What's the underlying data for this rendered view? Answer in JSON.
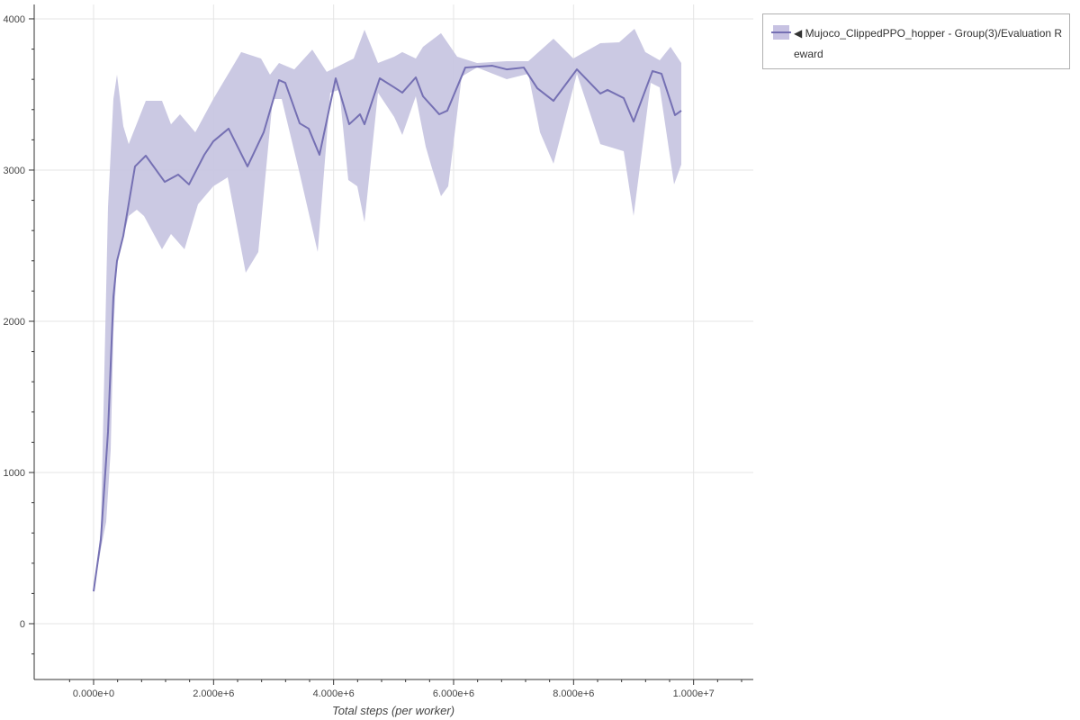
{
  "chart_data": {
    "type": "area",
    "xlabel": "Total steps (per worker)",
    "ylabel": "",
    "xlim": [
      -990000,
      10995000
    ],
    "ylim": [
      -369,
      4095
    ],
    "grid": true,
    "legend_placement": "outside-top-right",
    "x_ticks": [
      0,
      2000000,
      4000000,
      6000000,
      8000000,
      10000000
    ],
    "x_tick_labels": [
      "0.000e+0",
      "2.000e+6",
      "4.000e+6",
      "6.000e+6",
      "8.000e+6",
      "1.000e+7"
    ],
    "y_ticks": [
      0,
      1000,
      2000,
      3000,
      4000
    ],
    "y_tick_labels": [
      "0",
      "1000",
      "2000",
      "3000",
      "4000"
    ],
    "series": [
      {
        "name": "◀ Mujoco_ClippedPPO_hopper - Group(3)/Evaluation Reward",
        "color": "#7570b3",
        "band_color": "#c8c6e2",
        "mean": [
          [
            0,
            214
          ],
          [
            120000,
            554
          ],
          [
            240000,
            1268
          ],
          [
            330000,
            2161
          ],
          [
            390000,
            2399
          ],
          [
            495000,
            2565
          ],
          [
            690000,
            3024
          ],
          [
            870000,
            3095
          ],
          [
            1185000,
            2922
          ],
          [
            1410000,
            2970
          ],
          [
            1590000,
            2905
          ],
          [
            1845000,
            3101
          ],
          [
            1995000,
            3190
          ],
          [
            2250000,
            3274
          ],
          [
            2565000,
            3024
          ],
          [
            2835000,
            3250
          ],
          [
            3090000,
            3595
          ],
          [
            3195000,
            3577
          ],
          [
            3435000,
            3309
          ],
          [
            3585000,
            3274
          ],
          [
            3765000,
            3101
          ],
          [
            4035000,
            3607
          ],
          [
            4260000,
            3303
          ],
          [
            4440000,
            3369
          ],
          [
            4515000,
            3303
          ],
          [
            4770000,
            3607
          ],
          [
            5010000,
            3547
          ],
          [
            5145000,
            3512
          ],
          [
            5370000,
            3613
          ],
          [
            5490000,
            3488
          ],
          [
            5760000,
            3369
          ],
          [
            5895000,
            3393
          ],
          [
            6195000,
            3678
          ],
          [
            6645000,
            3690
          ],
          [
            6885000,
            3666
          ],
          [
            7170000,
            3678
          ],
          [
            7395000,
            3541
          ],
          [
            7665000,
            3458
          ],
          [
            8055000,
            3666
          ],
          [
            8445000,
            3506
          ],
          [
            8565000,
            3530
          ],
          [
            8835000,
            3476
          ],
          [
            9000000,
            3321
          ],
          [
            9315000,
            3655
          ],
          [
            9465000,
            3637
          ],
          [
            9690000,
            3363
          ],
          [
            9795000,
            3393
          ]
        ],
        "upper": [
          [
            0,
            214
          ],
          [
            120000,
            613
          ],
          [
            240000,
            2756
          ],
          [
            330000,
            3470
          ],
          [
            390000,
            3631
          ],
          [
            495000,
            3291
          ],
          [
            585000,
            3172
          ],
          [
            870000,
            3458
          ],
          [
            1140000,
            3458
          ],
          [
            1290000,
            3303
          ],
          [
            1440000,
            3369
          ],
          [
            1695000,
            3250
          ],
          [
            1995000,
            3470
          ],
          [
            2460000,
            3780
          ],
          [
            2790000,
            3738
          ],
          [
            2940000,
            3631
          ],
          [
            3090000,
            3708
          ],
          [
            3345000,
            3666
          ],
          [
            3645000,
            3797
          ],
          [
            3885000,
            3649
          ],
          [
            4095000,
            3690
          ],
          [
            4335000,
            3738
          ],
          [
            4515000,
            3928
          ],
          [
            4740000,
            3708
          ],
          [
            5010000,
            3750
          ],
          [
            5145000,
            3780
          ],
          [
            5370000,
            3738
          ],
          [
            5490000,
            3815
          ],
          [
            5790000,
            3905
          ],
          [
            6060000,
            3750
          ],
          [
            6390000,
            3708
          ],
          [
            6885000,
            3720
          ],
          [
            7245000,
            3720
          ],
          [
            7665000,
            3869
          ],
          [
            7995000,
            3738
          ],
          [
            8445000,
            3839
          ],
          [
            8760000,
            3845
          ],
          [
            9015000,
            3934
          ],
          [
            9195000,
            3780
          ],
          [
            9435000,
            3726
          ],
          [
            9615000,
            3815
          ],
          [
            9795000,
            3708
          ]
        ],
        "lower": [
          [
            0,
            214
          ],
          [
            120000,
            494
          ],
          [
            210000,
            673
          ],
          [
            285000,
            1149
          ],
          [
            330000,
            1923
          ],
          [
            390000,
            2399
          ],
          [
            585000,
            2696
          ],
          [
            720000,
            2738
          ],
          [
            840000,
            2696
          ],
          [
            1140000,
            2476
          ],
          [
            1290000,
            2577
          ],
          [
            1515000,
            2476
          ],
          [
            1740000,
            2774
          ],
          [
            1995000,
            2893
          ],
          [
            2235000,
            2952
          ],
          [
            2535000,
            2321
          ],
          [
            2745000,
            2458
          ],
          [
            2985000,
            3470
          ],
          [
            3135000,
            3470
          ],
          [
            3435000,
            2976
          ],
          [
            3735000,
            2458
          ],
          [
            3945000,
            3512
          ],
          [
            4095000,
            3530
          ],
          [
            4245000,
            2934
          ],
          [
            4395000,
            2893
          ],
          [
            4515000,
            2655
          ],
          [
            4740000,
            3512
          ],
          [
            5010000,
            3351
          ],
          [
            5145000,
            3232
          ],
          [
            5370000,
            3488
          ],
          [
            5535000,
            3155
          ],
          [
            5640000,
            3012
          ],
          [
            5790000,
            2827
          ],
          [
            5910000,
            2893
          ],
          [
            6135000,
            3619
          ],
          [
            6390000,
            3678
          ],
          [
            6885000,
            3601
          ],
          [
            7245000,
            3637
          ],
          [
            7440000,
            3250
          ],
          [
            7665000,
            3042
          ],
          [
            8055000,
            3637
          ],
          [
            8445000,
            3172
          ],
          [
            8835000,
            3125
          ],
          [
            9000000,
            2696
          ],
          [
            9285000,
            3577
          ],
          [
            9435000,
            3547
          ],
          [
            9675000,
            2905
          ],
          [
            9795000,
            3036
          ]
        ]
      }
    ]
  },
  "legend": {
    "label": "◀ Mujoco_ClippedPPO_hopper - Group(3)/Evaluation Reward"
  }
}
